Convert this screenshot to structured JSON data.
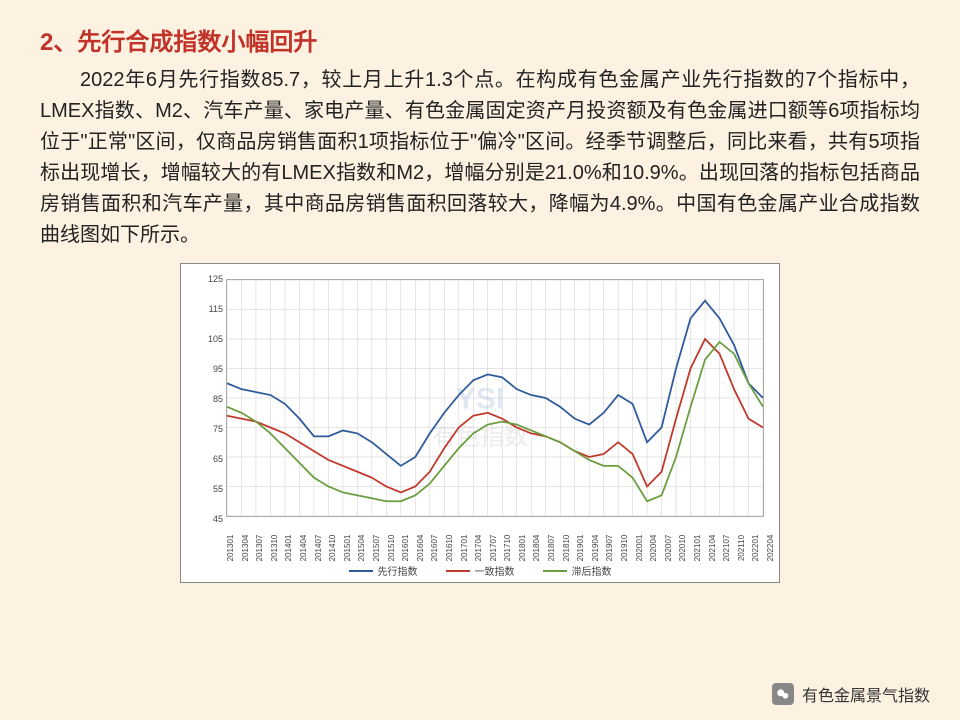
{
  "heading": "2、先行合成指数小幅回升",
  "paragraph": "2022年6月先行指数85.7，较上月上升1.3个点。在构成有色金属产业先行指数的7个指标中，LMEX指数、M2、汽车产量、家电产量、有色金属固定资产月投资额及有色金属进口额等6项指标均位于\"正常\"区间，仅商品房销售面积1项指标位于\"偏冷\"区间。经季节调整后，同比来看，共有5项指标出现增长，增幅较大的有LMEX指数和M2，增幅分别是21.0%和10.9%。出现回落的指标包括商品房销售面积和汽车产量，其中商品房销售面积回落较大，降幅为4.9%。中国有色金属产业合成指数曲线图如下所示。",
  "footer_text": "有色金属景气指数",
  "chart": {
    "type": "line",
    "background_color": "#ffffff",
    "grid_color": "#cccccc",
    "text_color": "#444444",
    "ylim": [
      45,
      125
    ],
    "ytick_step": 10,
    "yticks": [
      45,
      55,
      65,
      75,
      85,
      95,
      105,
      115,
      125
    ],
    "x_labels": [
      "201301",
      "201304",
      "201307",
      "201310",
      "201401",
      "201404",
      "201407",
      "201410",
      "201501",
      "201504",
      "201507",
      "201510",
      "201601",
      "201604",
      "201607",
      "201610",
      "201701",
      "201704",
      "201707",
      "201710",
      "201801",
      "201804",
      "201807",
      "201810",
      "201901",
      "201904",
      "201907",
      "201910",
      "202001",
      "202004",
      "202007",
      "202010",
      "202101",
      "202104",
      "202107",
      "202110",
      "202201",
      "202204"
    ],
    "legend_labels": [
      "先行指数",
      "一致指数",
      "滞后指数"
    ],
    "line_width": 1.8,
    "series": [
      {
        "name": "先行指数",
        "color": "#2f5b9c",
        "values": [
          90,
          88,
          87,
          86,
          83,
          78,
          72,
          72,
          74,
          73,
          70,
          66,
          62,
          65,
          73,
          80,
          86,
          91,
          93,
          92,
          88,
          86,
          85,
          82,
          78,
          76,
          80,
          86,
          83,
          70,
          75,
          95,
          112,
          118,
          112,
          103,
          90,
          85
        ]
      },
      {
        "name": "一致指数",
        "color": "#c0392b",
        "values": [
          79,
          78,
          77,
          75,
          73,
          70,
          67,
          64,
          62,
          60,
          58,
          55,
          53,
          55,
          60,
          68,
          75,
          79,
          80,
          78,
          75,
          73,
          72,
          70,
          67,
          65,
          66,
          70,
          66,
          55,
          60,
          78,
          95,
          105,
          100,
          88,
          78,
          75
        ]
      },
      {
        "name": "滞后指数",
        "color": "#6a9e3f",
        "values": [
          82,
          80,
          77,
          73,
          68,
          63,
          58,
          55,
          53,
          52,
          51,
          50,
          50,
          52,
          56,
          62,
          68,
          73,
          76,
          77,
          76,
          74,
          72,
          70,
          67,
          64,
          62,
          62,
          58,
          50,
          52,
          65,
          82,
          98,
          104,
          100,
          90,
          82
        ]
      }
    ],
    "watermark_top": "YSI",
    "watermark_bottom": "有色指数"
  }
}
